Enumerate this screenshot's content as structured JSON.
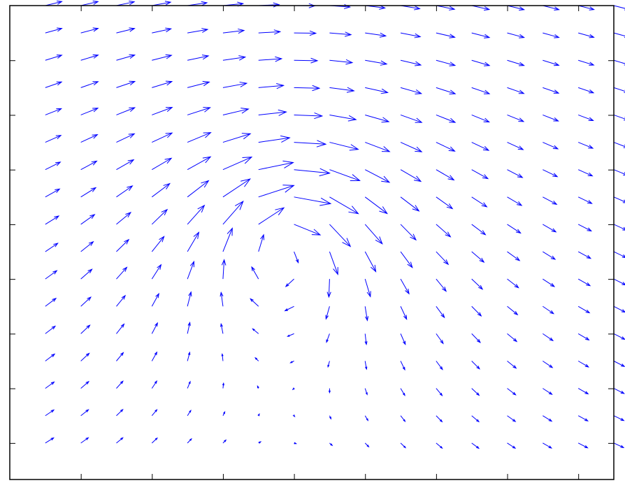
{
  "chart_data": {
    "type": "quiver",
    "title": "",
    "xlabel": "",
    "ylabel": "",
    "xlim": [
      0,
      17
    ],
    "ylim": [
      0,
      13
    ],
    "grid": false,
    "arrow_color": "#0000ff",
    "axes_color": "#000000",
    "background": "#ffffff",
    "x_ticks": [
      2,
      4,
      6,
      8,
      10,
      12,
      14,
      16
    ],
    "y_ticks": [
      1,
      2.5,
      4,
      5.5,
      7,
      8.5,
      10,
      11.5
    ],
    "show_tick_labels": false,
    "field": {
      "description_free_note": "",
      "vortices": [
        {
          "center": [
            7.6,
            6.6
          ],
          "strength": -10.0,
          "core": 1.5
        },
        {
          "center": [
            7.2,
            7.8
          ],
          "strength": 3.0,
          "core": 3.2
        }
      ],
      "uniform_flow": [
        0.25,
        0.0
      ]
    },
    "grid_spec": {
      "x": [
        1,
        17,
        1
      ],
      "y": [
        1,
        13,
        0.75
      ]
    },
    "arrow_scale": 0.85
  }
}
